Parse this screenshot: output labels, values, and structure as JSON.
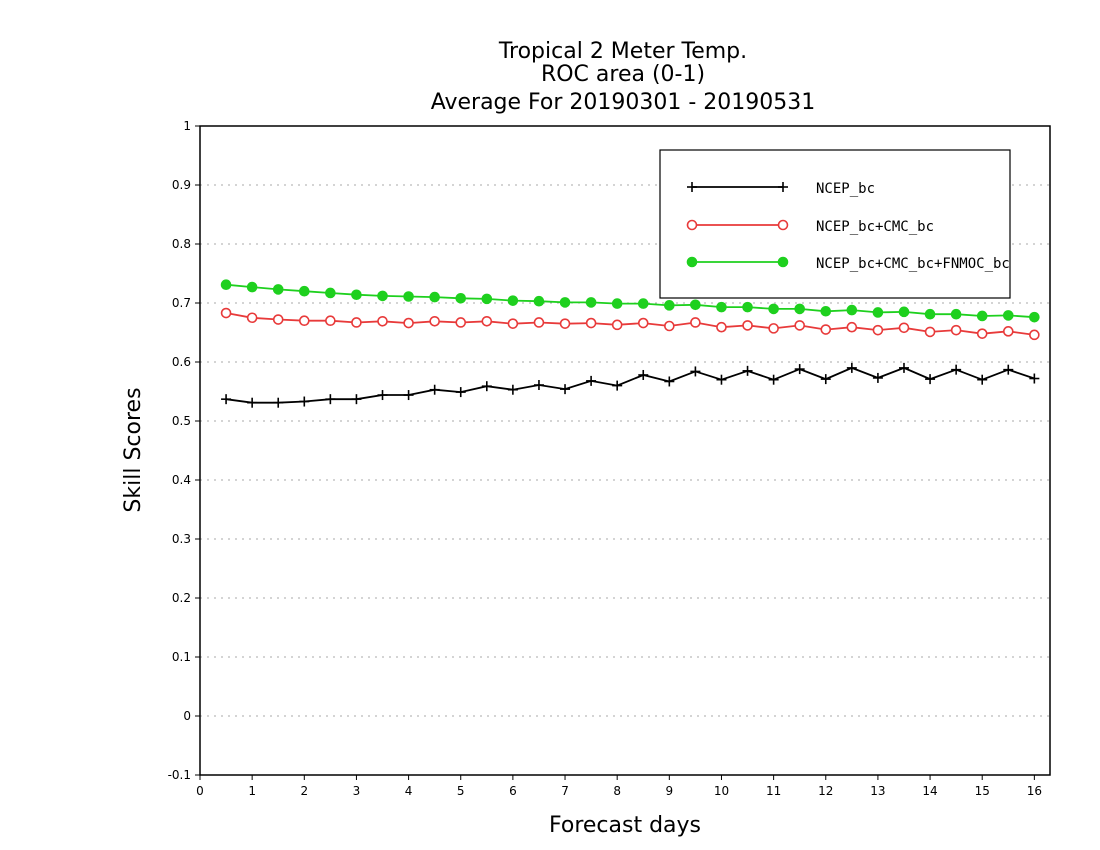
{
  "chart_data": {
    "type": "line",
    "title": [
      "Tropical 2 Meter Temp.",
      "ROC area (0-1)",
      "Average For 20190301 - 20190531"
    ],
    "xlabel": "Forecast days",
    "ylabel": "Skill Scores",
    "xlim": [
      0,
      16.3
    ],
    "ylim": [
      -0.1,
      1
    ],
    "x_ticks": [
      0,
      1,
      2,
      3,
      4,
      5,
      6,
      7,
      8,
      9,
      10,
      11,
      12,
      13,
      14,
      15,
      16
    ],
    "y_ticks": [
      -0.1,
      0,
      0.1,
      0.2,
      0.3,
      0.4,
      0.5,
      0.6,
      0.7,
      0.8,
      0.9,
      1
    ],
    "y_tick_labels": [
      "-0.1",
      "0",
      "0.1",
      "0.2",
      "0.3",
      "0.4",
      "0.5",
      "0.6",
      "0.7",
      "0.8",
      "0.9",
      "1"
    ],
    "grid": true,
    "legend_position": "top-right",
    "x": [
      0.5,
      1,
      1.5,
      2,
      2.5,
      3,
      3.5,
      4,
      4.5,
      5,
      5.5,
      6,
      6.5,
      7,
      7.5,
      8,
      8.5,
      9,
      9.5,
      10,
      10.5,
      11,
      11.5,
      12,
      12.5,
      13,
      13.5,
      14,
      14.5,
      15,
      15.5,
      16
    ],
    "series": [
      {
        "name": "NCEP_bc",
        "color": "#000000",
        "marker": "plus",
        "values": [
          0.537,
          0.531,
          0.531,
          0.533,
          0.537,
          0.537,
          0.544,
          0.544,
          0.553,
          0.549,
          0.559,
          0.553,
          0.561,
          0.554,
          0.568,
          0.56,
          0.578,
          0.567,
          0.584,
          0.57,
          0.585,
          0.57,
          0.588,
          0.571,
          0.59,
          0.573,
          0.59,
          0.571,
          0.587,
          0.57,
          0.587,
          0.572
        ]
      },
      {
        "name": "NCEP_bc+CMC_bc",
        "color": "#e83a3a",
        "marker": "open-circle",
        "values": [
          0.683,
          0.675,
          0.672,
          0.67,
          0.67,
          0.667,
          0.669,
          0.666,
          0.669,
          0.667,
          0.669,
          0.665,
          0.667,
          0.665,
          0.666,
          0.663,
          0.666,
          0.661,
          0.667,
          0.659,
          0.662,
          0.657,
          0.662,
          0.655,
          0.659,
          0.654,
          0.658,
          0.651,
          0.654,
          0.648,
          0.652,
          0.646
        ]
      },
      {
        "name": "NCEP_bc+CMC_bc+FNMOC_bc",
        "color": "#1ed01e",
        "marker": "filled-circle",
        "values": [
          0.731,
          0.727,
          0.723,
          0.72,
          0.717,
          0.714,
          0.712,
          0.711,
          0.71,
          0.708,
          0.707,
          0.704,
          0.703,
          0.701,
          0.701,
          0.699,
          0.699,
          0.696,
          0.697,
          0.693,
          0.693,
          0.69,
          0.69,
          0.686,
          0.688,
          0.684,
          0.685,
          0.681,
          0.681,
          0.678,
          0.679,
          0.676
        ]
      }
    ]
  }
}
